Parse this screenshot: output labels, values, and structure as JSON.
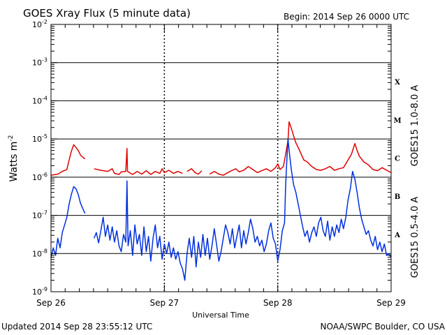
{
  "header": {
    "title": "GOES Xray Flux (5 minute data)",
    "begin": "Begin:  2014 Sep 26 0000 UTC"
  },
  "footer": {
    "updated": "Updated 2014 Sep 28 23:55:12 UTC",
    "credit": "NOAA/SWPC Boulder, CO USA"
  },
  "chart_data": {
    "type": "line",
    "title": "GOES Xray Flux (5 minute data)",
    "xlabel": "Universal Time",
    "ylabel": "Watts m-2",
    "ylabel_base": "Watts m",
    "ylabel_sup": "-2",
    "yscale": "log",
    "ylim": [
      1e-09,
      0.01
    ],
    "xlim": [
      0,
      3
    ],
    "x_unit": "days since 2014 Sep 26 0000 UTC",
    "grid": "horizontal at each decade, dashed vertical at day boundaries",
    "x_ticks": [
      {
        "x": 0,
        "label": "Sep 26"
      },
      {
        "x": 1,
        "label": "Sep 27"
      },
      {
        "x": 2,
        "label": "Sep 28"
      },
      {
        "x": 3,
        "label": "Sep 29"
      }
    ],
    "y_ticks": [
      {
        "exp": -9,
        "base": "10",
        "sup": "-9"
      },
      {
        "exp": -8,
        "base": "10",
        "sup": "-8"
      },
      {
        "exp": -7,
        "base": "10",
        "sup": "-7"
      },
      {
        "exp": -6,
        "base": "10",
        "sup": "-6"
      },
      {
        "exp": -5,
        "base": "10",
        "sup": "-5"
      },
      {
        "exp": -4,
        "base": "10",
        "sup": "-4"
      },
      {
        "exp": -3,
        "base": "10",
        "sup": "-3"
      },
      {
        "exp": -2,
        "base": "10",
        "sup": "-2"
      }
    ],
    "flare_classes": [
      {
        "label": "X",
        "exp": -3.5
      },
      {
        "label": "M",
        "exp": -4.5
      },
      {
        "label": "C",
        "exp": -5.5
      },
      {
        "label": "B",
        "exp": -6.5
      },
      {
        "label": "A",
        "exp": -7.5
      }
    ],
    "series": [
      {
        "name": "GOES15 1.0-8.0 A",
        "color": "#e00000",
        "points": [
          [
            0.0,
            -5.95
          ],
          [
            0.06,
            -5.92
          ],
          [
            0.1,
            -5.85
          ],
          [
            0.14,
            -5.8
          ],
          [
            0.16,
            -5.55
          ],
          [
            0.18,
            -5.32
          ],
          [
            0.2,
            -5.15
          ],
          [
            0.22,
            -5.22
          ],
          [
            0.24,
            -5.3
          ],
          [
            0.26,
            -5.42
          ],
          [
            0.28,
            -5.48
          ],
          [
            0.3,
            -5.52
          ],
          null,
          [
            0.38,
            -5.78
          ],
          [
            0.44,
            -5.82
          ],
          [
            0.5,
            -5.85
          ],
          [
            0.54,
            -5.78
          ],
          [
            0.56,
            -5.9
          ],
          [
            0.6,
            -5.93
          ],
          [
            0.62,
            -5.86
          ],
          [
            0.66,
            -5.85
          ],
          [
            0.67,
            -5.25
          ],
          [
            0.675,
            -5.85
          ],
          [
            0.72,
            -5.93
          ],
          [
            0.76,
            -5.85
          ],
          [
            0.8,
            -5.92
          ],
          [
            0.84,
            -5.83
          ],
          [
            0.88,
            -5.93
          ],
          [
            0.92,
            -5.85
          ],
          [
            0.96,
            -5.9
          ],
          [
            0.98,
            -5.78
          ],
          [
            1.0,
            -5.88
          ],
          [
            1.04,
            -5.82
          ],
          [
            1.08,
            -5.9
          ],
          [
            1.12,
            -5.85
          ],
          [
            1.16,
            -5.9
          ],
          null,
          [
            1.2,
            -5.85
          ],
          [
            1.24,
            -5.78
          ],
          [
            1.27,
            -5.88
          ],
          [
            1.3,
            -5.92
          ],
          [
            1.33,
            -5.83
          ],
          null,
          [
            1.4,
            -5.92
          ],
          [
            1.44,
            -5.85
          ],
          [
            1.48,
            -5.92
          ],
          [
            1.52,
            -5.95
          ],
          [
            1.56,
            -5.88
          ],
          [
            1.6,
            -5.82
          ],
          [
            1.63,
            -5.78
          ],
          [
            1.66,
            -5.86
          ],
          [
            1.7,
            -5.82
          ],
          [
            1.74,
            -5.72
          ],
          [
            1.78,
            -5.8
          ],
          [
            1.82,
            -5.88
          ],
          [
            1.86,
            -5.83
          ],
          [
            1.9,
            -5.78
          ],
          [
            1.94,
            -5.85
          ],
          [
            1.98,
            -5.75
          ],
          [
            2.0,
            -5.65
          ],
          [
            2.02,
            -5.8
          ],
          [
            2.05,
            -5.72
          ],
          [
            2.07,
            -5.4
          ],
          [
            2.09,
            -5.05
          ],
          [
            2.1,
            -4.55
          ],
          [
            2.12,
            -4.72
          ],
          [
            2.14,
            -4.92
          ],
          [
            2.16,
            -5.1
          ],
          [
            2.18,
            -5.22
          ],
          [
            2.2,
            -5.35
          ],
          [
            2.23,
            -5.55
          ],
          [
            2.26,
            -5.6
          ],
          [
            2.3,
            -5.72
          ],
          [
            2.34,
            -5.8
          ],
          [
            2.38,
            -5.82
          ],
          [
            2.42,
            -5.78
          ],
          [
            2.46,
            -5.72
          ],
          [
            2.5,
            -5.82
          ],
          [
            2.54,
            -5.78
          ],
          [
            2.58,
            -5.75
          ],
          [
            2.62,
            -5.55
          ],
          [
            2.65,
            -5.4
          ],
          [
            2.68,
            -5.12
          ],
          [
            2.7,
            -5.3
          ],
          [
            2.72,
            -5.45
          ],
          [
            2.76,
            -5.6
          ],
          [
            2.8,
            -5.68
          ],
          [
            2.84,
            -5.8
          ],
          [
            2.88,
            -5.83
          ],
          [
            2.92,
            -5.75
          ],
          [
            2.96,
            -5.82
          ],
          [
            3.0,
            -5.88
          ]
        ]
      },
      {
        "name": "GOES15 0.5-4.0 A",
        "color": "#0030e0",
        "points": [
          [
            0.0,
            -8.1
          ],
          [
            0.02,
            -7.85
          ],
          [
            0.04,
            -8.05
          ],
          [
            0.06,
            -7.6
          ],
          [
            0.08,
            -7.85
          ],
          [
            0.1,
            -7.45
          ],
          [
            0.12,
            -7.25
          ],
          [
            0.14,
            -7.05
          ],
          [
            0.16,
            -6.7
          ],
          [
            0.18,
            -6.45
          ],
          [
            0.2,
            -6.25
          ],
          [
            0.22,
            -6.3
          ],
          [
            0.24,
            -6.45
          ],
          [
            0.26,
            -6.68
          ],
          [
            0.28,
            -6.82
          ],
          [
            0.3,
            -6.95
          ],
          null,
          [
            0.38,
            -7.6
          ],
          [
            0.4,
            -7.45
          ],
          [
            0.42,
            -7.72
          ],
          [
            0.44,
            -7.4
          ],
          [
            0.46,
            -7.05
          ],
          [
            0.48,
            -7.55
          ],
          [
            0.5,
            -7.25
          ],
          [
            0.52,
            -7.65
          ],
          [
            0.54,
            -7.3
          ],
          [
            0.56,
            -7.7
          ],
          [
            0.58,
            -7.4
          ],
          [
            0.6,
            -7.8
          ],
          [
            0.62,
            -7.95
          ],
          [
            0.64,
            -7.5
          ],
          [
            0.66,
            -7.7
          ],
          [
            0.67,
            -6.1
          ],
          [
            0.68,
            -7.8
          ],
          [
            0.7,
            -7.4
          ],
          [
            0.72,
            -8.05
          ],
          [
            0.74,
            -7.25
          ],
          [
            0.76,
            -7.75
          ],
          [
            0.78,
            -7.5
          ],
          [
            0.8,
            -8.05
          ],
          [
            0.82,
            -7.3
          ],
          [
            0.84,
            -7.95
          ],
          [
            0.86,
            -7.55
          ],
          [
            0.88,
            -8.2
          ],
          [
            0.9,
            -7.6
          ],
          [
            0.92,
            -7.25
          ],
          [
            0.94,
            -7.85
          ],
          [
            0.96,
            -7.55
          ],
          [
            0.98,
            -8.15
          ],
          [
            1.0,
            -7.75
          ],
          [
            1.02,
            -8.0
          ],
          [
            1.04,
            -7.7
          ],
          [
            1.06,
            -8.1
          ],
          [
            1.08,
            -7.85
          ],
          [
            1.1,
            -8.15
          ],
          [
            1.12,
            -7.95
          ],
          [
            1.14,
            -8.25
          ],
          [
            1.16,
            -8.4
          ],
          [
            1.18,
            -8.7
          ],
          [
            1.2,
            -8.0
          ],
          [
            1.22,
            -7.6
          ],
          [
            1.24,
            -8.1
          ],
          [
            1.26,
            -7.55
          ],
          [
            1.28,
            -8.35
          ],
          [
            1.3,
            -7.7
          ],
          [
            1.32,
            -8.1
          ],
          [
            1.34,
            -7.5
          ],
          [
            1.36,
            -8.05
          ],
          [
            1.38,
            -7.6
          ],
          [
            1.4,
            -8.15
          ],
          [
            1.42,
            -7.8
          ],
          [
            1.44,
            -7.35
          ],
          [
            1.46,
            -7.75
          ],
          [
            1.48,
            -8.2
          ],
          [
            1.5,
            -7.95
          ],
          [
            1.52,
            -7.6
          ],
          [
            1.54,
            -7.25
          ],
          [
            1.56,
            -7.45
          ],
          [
            1.58,
            -7.75
          ],
          [
            1.6,
            -7.35
          ],
          [
            1.62,
            -7.85
          ],
          [
            1.64,
            -7.55
          ],
          [
            1.66,
            -7.25
          ],
          [
            1.68,
            -7.85
          ],
          [
            1.7,
            -7.4
          ],
          [
            1.72,
            -7.75
          ],
          [
            1.74,
            -7.45
          ],
          [
            1.76,
            -7.1
          ],
          [
            1.78,
            -7.35
          ],
          [
            1.8,
            -7.7
          ],
          [
            1.82,
            -7.55
          ],
          [
            1.84,
            -7.8
          ],
          [
            1.86,
            -7.65
          ],
          [
            1.88,
            -7.95
          ],
          [
            1.9,
            -7.75
          ],
          [
            1.92,
            -7.4
          ],
          [
            1.94,
            -7.2
          ],
          [
            1.96,
            -7.6
          ],
          [
            1.98,
            -7.75
          ],
          [
            2.0,
            -8.2
          ],
          [
            2.02,
            -7.9
          ],
          [
            2.04,
            -7.4
          ],
          [
            2.06,
            -7.2
          ],
          [
            2.07,
            -6.2
          ],
          [
            2.08,
            -5.55
          ],
          [
            2.09,
            -5.0
          ],
          [
            2.1,
            -5.3
          ],
          [
            2.12,
            -5.8
          ],
          [
            2.14,
            -6.2
          ],
          [
            2.16,
            -6.4
          ],
          [
            2.18,
            -6.7
          ],
          [
            2.2,
            -7.0
          ],
          [
            2.22,
            -7.3
          ],
          [
            2.24,
            -7.55
          ],
          [
            2.26,
            -7.4
          ],
          [
            2.28,
            -7.7
          ],
          [
            2.3,
            -7.45
          ],
          [
            2.32,
            -7.3
          ],
          [
            2.34,
            -7.55
          ],
          [
            2.36,
            -7.2
          ],
          [
            2.38,
            -7.05
          ],
          [
            2.4,
            -7.4
          ],
          [
            2.42,
            -7.55
          ],
          [
            2.44,
            -7.15
          ],
          [
            2.46,
            -7.65
          ],
          [
            2.48,
            -7.3
          ],
          [
            2.5,
            -7.55
          ],
          [
            2.52,
            -7.25
          ],
          [
            2.54,
            -7.45
          ],
          [
            2.56,
            -7.1
          ],
          [
            2.58,
            -7.35
          ],
          [
            2.6,
            -7.05
          ],
          [
            2.62,
            -6.6
          ],
          [
            2.64,
            -6.3
          ],
          [
            2.66,
            -5.85
          ],
          [
            2.68,
            -6.05
          ],
          [
            2.7,
            -6.4
          ],
          [
            2.72,
            -6.8
          ],
          [
            2.74,
            -7.1
          ],
          [
            2.76,
            -7.3
          ],
          [
            2.78,
            -7.5
          ],
          [
            2.8,
            -7.4
          ],
          [
            2.82,
            -7.65
          ],
          [
            2.84,
            -7.8
          ],
          [
            2.86,
            -7.55
          ],
          [
            2.88,
            -7.9
          ],
          [
            2.9,
            -7.7
          ],
          [
            2.92,
            -7.95
          ],
          [
            2.94,
            -7.75
          ],
          [
            2.96,
            -8.05
          ],
          [
            2.98,
            -8.0
          ],
          [
            3.0,
            -8.1
          ]
        ]
      }
    ]
  }
}
